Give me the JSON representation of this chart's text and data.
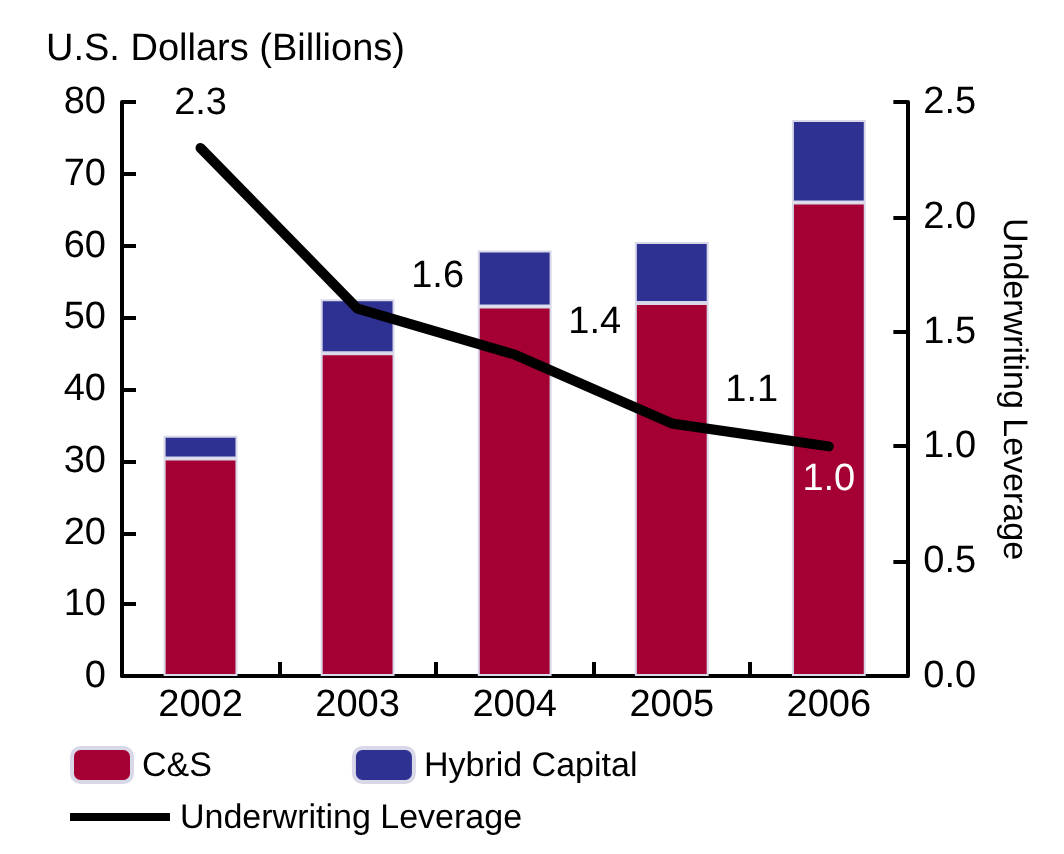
{
  "chart_data": {
    "type": "bar",
    "stacked": true,
    "ylabel": "U.S. Dollars (Billions)",
    "y2label": "Underwriting Leverage",
    "categories": [
      "2002",
      "2003",
      "2004",
      "2005",
      "2006"
    ],
    "series": [
      {
        "name": "C&S",
        "color": "#a50034",
        "values": [
          30.3,
          45,
          51.5,
          52,
          66
        ]
      },
      {
        "name": "Hybrid Capital",
        "color": "#2e3192",
        "values": [
          3.2,
          7.5,
          7.8,
          8.5,
          11.5
        ]
      },
      {
        "name": "Underwriting Leverage",
        "type": "line",
        "axis": "y2",
        "color": "#000000",
        "values": [
          2.3,
          1.6,
          1.4,
          1.1,
          1.0
        ],
        "data_labels": true,
        "value_labels": [
          "2.3",
          "1.6",
          "1.4",
          "1.1",
          "1.0"
        ]
      }
    ],
    "ylim": [
      0,
      80
    ],
    "yticks": [
      0,
      10,
      20,
      30,
      40,
      50,
      60,
      70,
      80
    ],
    "y2lim": [
      0,
      2.5
    ],
    "y2ticks": [
      {
        "value": 0,
        "label": "0.0"
      },
      {
        "value": 0.5,
        "label": "0.5"
      },
      {
        "value": 1,
        "label": "1.0"
      },
      {
        "value": 1.5,
        "label": "1.5"
      },
      {
        "value": 2,
        "label": "2.0"
      },
      2.5
    ],
    "grid": false,
    "legend": "bottom",
    "marker": "none",
    "line_style": "solid"
  }
}
